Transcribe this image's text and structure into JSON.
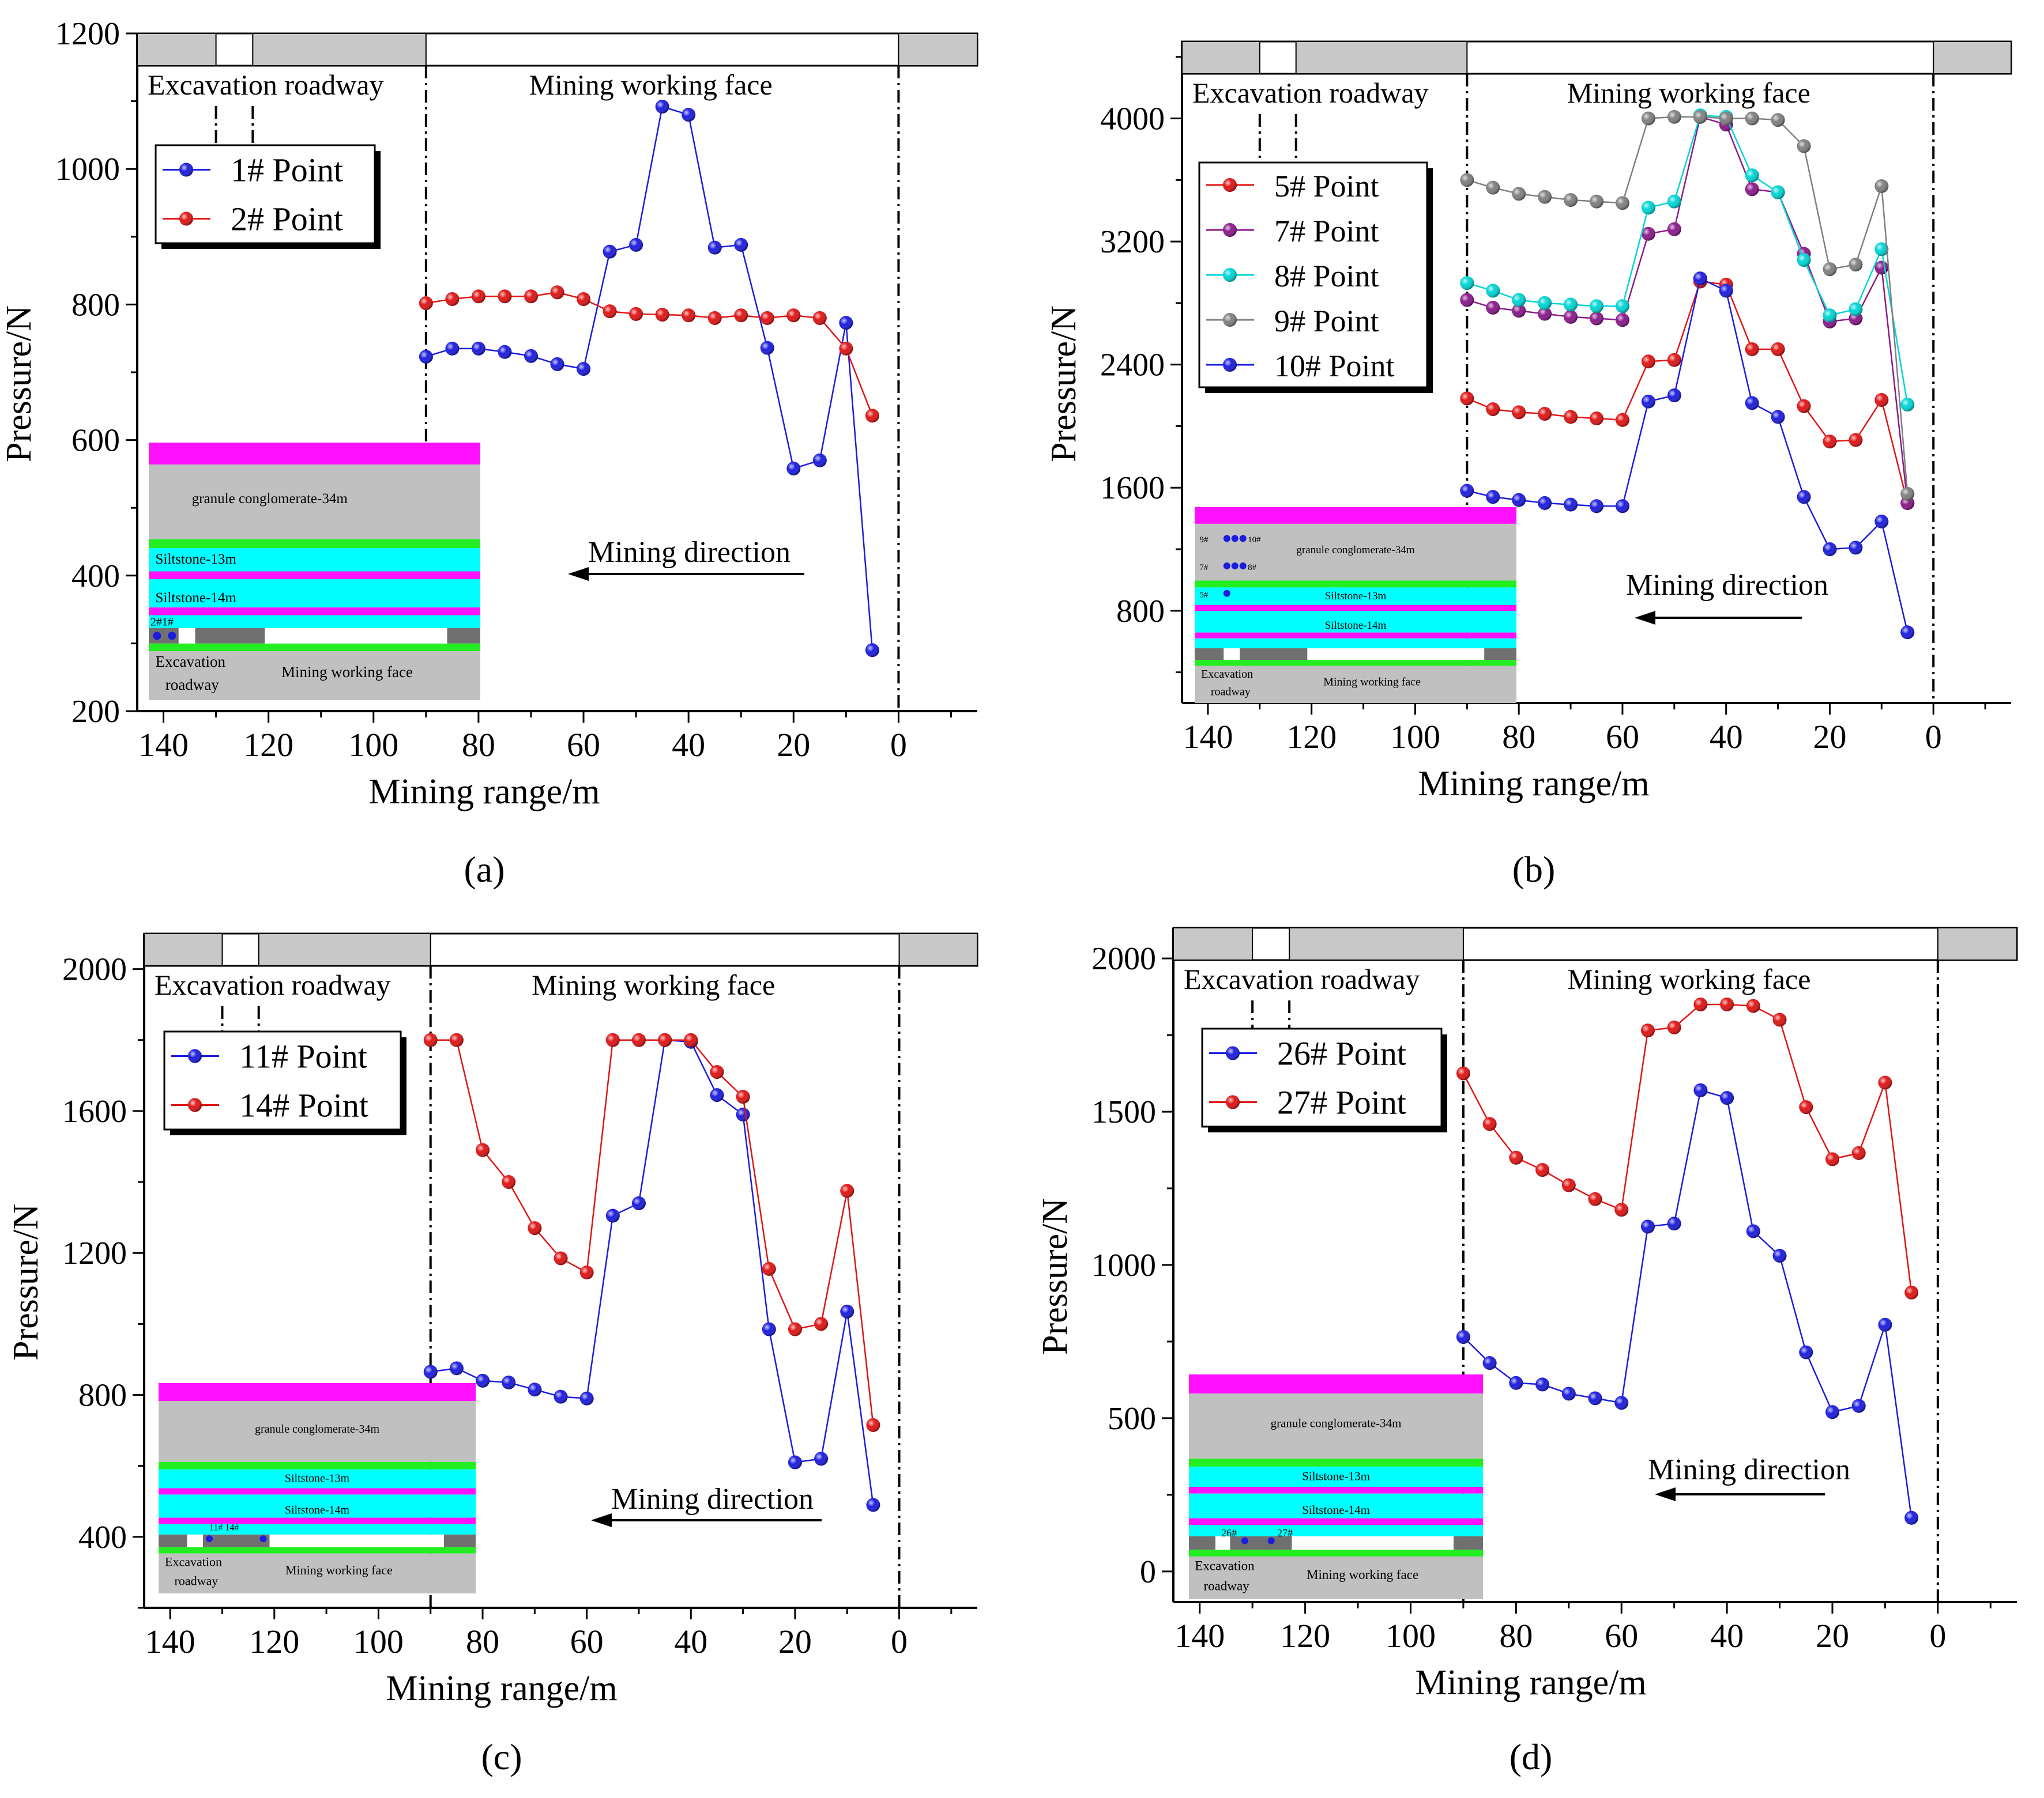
{
  "figure": {
    "panel_labels": [
      "(a)",
      "(b)",
      "(c)",
      "(d)"
    ]
  },
  "chart_data": [
    {
      "type": "line",
      "panel": "(a)",
      "xlabel": "Mining range/m",
      "ylabel": "Pressure/N",
      "xlim": [
        145,
        -15
      ],
      "ylim": [
        200,
        1200
      ],
      "xticks": [
        140,
        120,
        100,
        80,
        60,
        40,
        20,
        0
      ],
      "yticks": [
        200,
        400,
        600,
        800,
        1000,
        1200
      ],
      "annotations": {
        "excavation": "Excavation roadway",
        "working_face": "Mining working face",
        "direction": "Mining direction"
      },
      "inset": {
        "layers": [
          "granule conglomerate-34m",
          "Siltstone-13m",
          "Siltstone-14m"
        ],
        "points_label": "2#1#",
        "roadway_label": [
          "Excavation",
          "roadway"
        ],
        "face_label": "Mining working face"
      },
      "series": [
        {
          "name": "1# Point",
          "color": "#1c1cdf",
          "x": [
            90,
            85,
            80,
            75,
            70,
            65,
            60,
            55,
            50,
            45,
            40,
            35,
            30,
            25,
            20,
            15,
            10,
            5
          ],
          "values": [
            723,
            735,
            735,
            730,
            724,
            712,
            705,
            878,
            888,
            1092,
            1080,
            884,
            888,
            736,
            558,
            570,
            773,
            290
          ]
        },
        {
          "name": "2# Point",
          "color": "#e01515",
          "x": [
            90,
            85,
            80,
            75,
            70,
            65,
            60,
            55,
            50,
            45,
            40,
            35,
            30,
            25,
            20,
            15,
            10,
            5
          ],
          "values": [
            802,
            808,
            812,
            812,
            812,
            818,
            808,
            790,
            786,
            785,
            784,
            780,
            784,
            780,
            784,
            780,
            735,
            636
          ]
        }
      ]
    },
    {
      "type": "line",
      "panel": "(b)",
      "xlabel": "Mining range/m",
      "ylabel": "Pressure/N",
      "xlim": [
        145,
        -15
      ],
      "ylim": [
        200,
        4500
      ],
      "xticks": [
        140,
        120,
        100,
        80,
        60,
        40,
        20,
        0
      ],
      "yticks": [
        800,
        1600,
        2400,
        3200,
        4000
      ],
      "annotations": {
        "excavation": "Excavation roadway",
        "working_face": "Mining working face",
        "direction": "Mining direction"
      },
      "inset": {
        "layers": [
          "granule conglomerate-34m",
          "Siltstone-13m",
          "Siltstone-14m"
        ],
        "points_labels": [
          "9#",
          "10#",
          "7#",
          "8#",
          "5#"
        ],
        "roadway_label": [
          "Excavation",
          "roadway"
        ],
        "face_label": "Mining working face"
      },
      "series": [
        {
          "name": "5# Point",
          "color": "#e01515",
          "x": [
            90,
            85,
            80,
            75,
            70,
            65,
            60,
            55,
            50,
            45,
            40,
            35,
            30,
            25,
            20,
            15,
            10,
            5
          ],
          "values": [
            2180,
            2110,
            2090,
            2080,
            2060,
            2050,
            2040,
            2420,
            2430,
            2940,
            2920,
            2500,
            2500,
            2130,
            1900,
            1910,
            2170,
            1500
          ]
        },
        {
          "name": "7# Point",
          "color": "#8b1a8b",
          "x": [
            90,
            85,
            80,
            75,
            70,
            65,
            60,
            55,
            50,
            45,
            40,
            35,
            30,
            25,
            20,
            15,
            10,
            5
          ],
          "values": [
            2820,
            2770,
            2750,
            2730,
            2710,
            2700,
            2690,
            3250,
            3280,
            4010,
            3960,
            3540,
            3520,
            3120,
            2680,
            2700,
            3030,
            1500
          ]
        },
        {
          "name": "8# Point",
          "color": "#00d5d5",
          "x": [
            90,
            85,
            80,
            75,
            70,
            65,
            60,
            55,
            50,
            45,
            40,
            35,
            30,
            25,
            20,
            15,
            10,
            5
          ],
          "values": [
            2930,
            2880,
            2820,
            2800,
            2790,
            2780,
            2780,
            3420,
            3460,
            4020,
            4010,
            3630,
            3520,
            3080,
            2720,
            2760,
            3150,
            2140
          ]
        },
        {
          "name": "9# Point",
          "color": "#808080",
          "x": [
            90,
            85,
            80,
            75,
            70,
            65,
            60,
            55,
            50,
            45,
            40,
            35,
            30,
            25,
            20,
            15,
            10,
            5
          ],
          "values": [
            3600,
            3550,
            3510,
            3490,
            3470,
            3460,
            3450,
            4000,
            4010,
            4010,
            4000,
            4000,
            3990,
            3820,
            3020,
            3050,
            3560,
            1560
          ]
        },
        {
          "name": "10# Point",
          "color": "#1c1cdf",
          "x": [
            90,
            85,
            80,
            75,
            70,
            65,
            60,
            55,
            50,
            45,
            40,
            35,
            30,
            25,
            20,
            15,
            10,
            5
          ],
          "values": [
            1580,
            1540,
            1520,
            1500,
            1490,
            1480,
            1480,
            2160,
            2200,
            2960,
            2880,
            2150,
            2060,
            1540,
            1200,
            1210,
            1380,
            660
          ]
        }
      ]
    },
    {
      "type": "line",
      "panel": "(c)",
      "xlabel": "Mining range/m",
      "ylabel": "Pressure/N",
      "xlim": [
        145,
        -15
      ],
      "ylim": [
        200,
        2100
      ],
      "xticks": [
        140,
        120,
        100,
        80,
        60,
        40,
        20,
        0
      ],
      "yticks": [
        400,
        800,
        1200,
        1600,
        2000
      ],
      "annotations": {
        "excavation": "Excavation roadway",
        "working_face": "Mining working face",
        "direction": "Mining direction"
      },
      "inset": {
        "layers": [
          "granule conglomerate-34m",
          "Siltstone-13m",
          "Siltstone-14m"
        ],
        "points_label": "11# 14#",
        "roadway_label": [
          "Excavation",
          "roadway"
        ],
        "face_label": "Mining working face"
      },
      "series": [
        {
          "name": "11# Point",
          "color": "#1c1cdf",
          "x": [
            90,
            85,
            80,
            75,
            70,
            65,
            60,
            55,
            50,
            45,
            40,
            35,
            30,
            25,
            20,
            15,
            10,
            5
          ],
          "values": [
            865,
            875,
            840,
            835,
            815,
            795,
            790,
            1305,
            1340,
            1800,
            1795,
            1645,
            1590,
            985,
            610,
            620,
            1035,
            490
          ]
        },
        {
          "name": "14#  Point",
          "color": "#e01515",
          "x": [
            90,
            85,
            80,
            75,
            70,
            65,
            60,
            55,
            50,
            45,
            40,
            35,
            30,
            25,
            20,
            15,
            10,
            5
          ],
          "values": [
            1800,
            1800,
            1490,
            1400,
            1270,
            1185,
            1145,
            1800,
            1800,
            1800,
            1800,
            1710,
            1640,
            1155,
            985,
            1000,
            1375,
            715
          ]
        }
      ]
    },
    {
      "type": "line",
      "panel": "(d)",
      "xlabel": "Mining range/m",
      "ylabel": "Pressure/N",
      "xlim": [
        145,
        -15
      ],
      "ylim": [
        -100,
        2100
      ],
      "xticks": [
        140,
        120,
        100,
        80,
        60,
        40,
        20,
        0
      ],
      "yticks": [
        0,
        500,
        1000,
        1500,
        2000
      ],
      "annotations": {
        "excavation": "Excavation roadway",
        "working_face": "Mining working face",
        "direction": "Mining direction"
      },
      "inset": {
        "layers": [
          "granule conglomerate-34m",
          "Siltstone-13m",
          "Siltstone-14m"
        ],
        "points_labels": [
          "26#",
          "27#"
        ],
        "roadway_label": [
          "Excavation",
          "roadway"
        ],
        "face_label": "Mining working face"
      },
      "series": [
        {
          "name": "26# Point",
          "color": "#1c1cdf",
          "x": [
            90,
            85,
            80,
            75,
            70,
            65,
            60,
            55,
            50,
            45,
            40,
            35,
            30,
            25,
            20,
            15,
            10,
            5
          ],
          "values": [
            765,
            680,
            615,
            610,
            580,
            565,
            550,
            1125,
            1135,
            1570,
            1545,
            1110,
            1030,
            715,
            520,
            540,
            805,
            175
          ]
        },
        {
          "name": "27# Point",
          "color": "#e01515",
          "x": [
            90,
            85,
            80,
            75,
            70,
            65,
            60,
            55,
            50,
            45,
            40,
            35,
            30,
            25,
            20,
            15,
            10,
            5
          ],
          "values": [
            1625,
            1460,
            1350,
            1310,
            1260,
            1215,
            1180,
            1765,
            1775,
            1850,
            1850,
            1845,
            1800,
            1515,
            1345,
            1365,
            1595,
            910
          ]
        }
      ]
    }
  ]
}
